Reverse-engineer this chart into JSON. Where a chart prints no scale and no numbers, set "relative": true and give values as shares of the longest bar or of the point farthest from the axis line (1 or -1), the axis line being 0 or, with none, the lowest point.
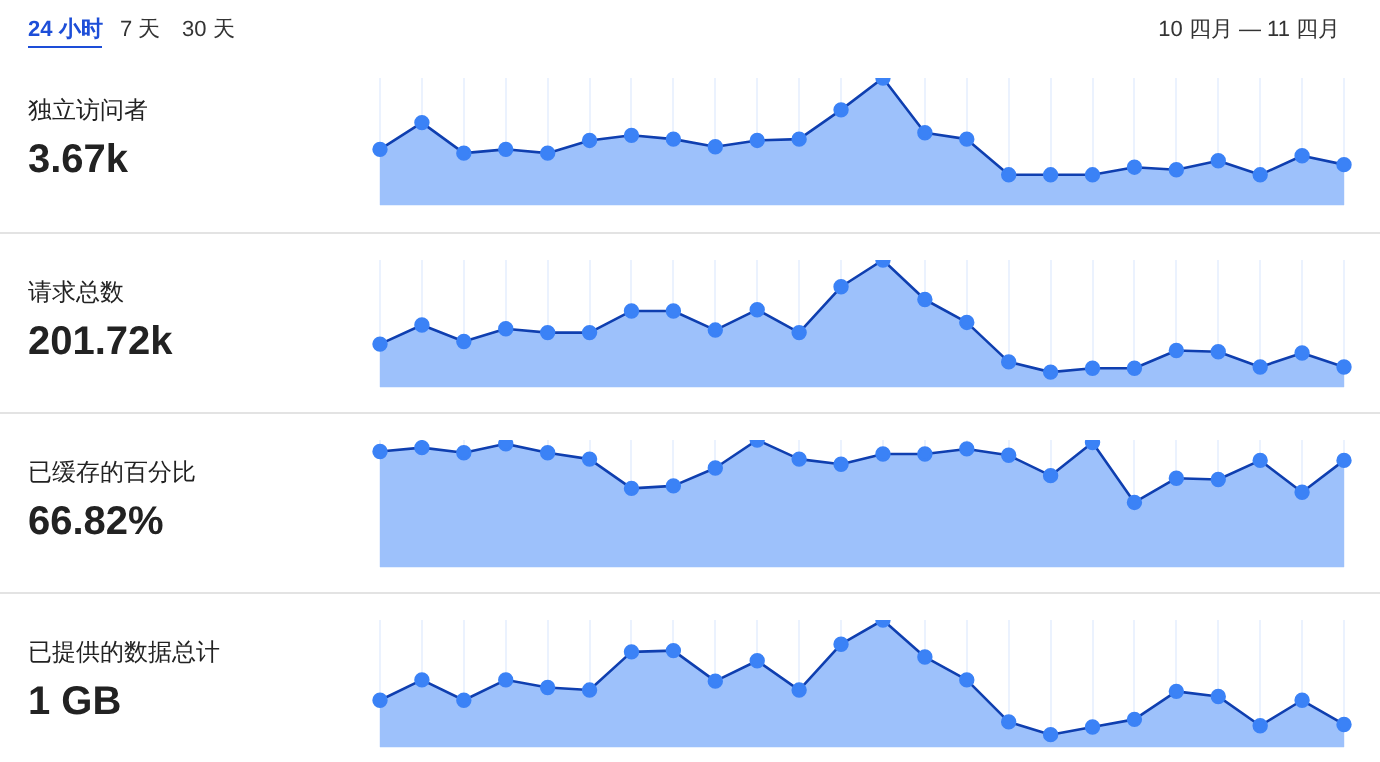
{
  "chart_data": [
    {
      "type": "area",
      "ylabel": "独立访问者",
      "subtitle": "3.67k",
      "annotations": [
        "24 小时",
        "7 天",
        "30 天",
        "10 四月 — 11 四月"
      ],
      "relative": true,
      "grid": "x",
      "legend": false,
      "marker": "circle",
      "categories": [
        null,
        null,
        null,
        null,
        null,
        null,
        null,
        null,
        null,
        null,
        null,
        null,
        null,
        null,
        null,
        null,
        null,
        null,
        null,
        null,
        null,
        null,
        null,
        null
      ],
      "series": [
        {
          "color": "#0f3fb0",
          "values": [
            0.44,
            0.65,
            0.41,
            0.44,
            0.41,
            0.51,
            0.55,
            0.52,
            0.46,
            0.51,
            0.52,
            0.75,
            1,
            0.57,
            0.52,
            0.24,
            0.24,
            0.24,
            0.3,
            0.28,
            0.35,
            0.24,
            0.39,
            0.32
          ]
        }
      ]
    },
    {
      "type": "area",
      "ylabel": "请求总数",
      "subtitle": "201.72k",
      "relative": true,
      "grid": "x",
      "legend": false,
      "marker": "circle",
      "categories": [
        null,
        null,
        null,
        null,
        null,
        null,
        null,
        null,
        null,
        null,
        null,
        null,
        null,
        null,
        null,
        null,
        null,
        null,
        null,
        null,
        null,
        null,
        null,
        null
      ],
      "series": [
        {
          "color": "#0f3fb0",
          "values": [
            0.34,
            0.49,
            0.36,
            0.46,
            0.43,
            0.43,
            0.6,
            0.6,
            0.45,
            0.61,
            0.43,
            0.79,
            1,
            0.69,
            0.51,
            0.2,
            0.12,
            0.15,
            0.15,
            0.29,
            0.28,
            0.16,
            0.27,
            0.16
          ]
        }
      ]
    },
    {
      "type": "area",
      "ylabel": "已缓存的百分比",
      "subtitle": "66.82%",
      "relative": true,
      "grid": "x",
      "legend": false,
      "marker": "circle",
      "categories": [
        null,
        null,
        null,
        null,
        null,
        null,
        null,
        null,
        null,
        null,
        null,
        null,
        null,
        null,
        null,
        null,
        null,
        null,
        null,
        null,
        null,
        null,
        null,
        null
      ],
      "series": [
        {
          "color": "#0f3fb0",
          "values": [
            0.91,
            0.94,
            0.9,
            0.97,
            0.9,
            0.85,
            0.62,
            0.64,
            0.78,
            1,
            0.85,
            0.81,
            0.89,
            0.89,
            0.93,
            0.88,
            0.72,
            0.98,
            0.51,
            0.7,
            0.69,
            0.84,
            0.59,
            0.84
          ]
        }
      ]
    },
    {
      "type": "area",
      "ylabel": "已提供的数据总计",
      "subtitle": "1 GB",
      "relative": true,
      "grid": "x",
      "legend": false,
      "marker": "circle",
      "categories": [
        null,
        null,
        null,
        null,
        null,
        null,
        null,
        null,
        null,
        null,
        null,
        null,
        null,
        null,
        null,
        null,
        null,
        null,
        null,
        null,
        null,
        null,
        null,
        null
      ],
      "series": [
        {
          "color": "#0f3fb0",
          "values": [
            0.37,
            0.53,
            0.37,
            0.53,
            0.47,
            0.45,
            0.75,
            0.76,
            0.52,
            0.68,
            0.45,
            0.81,
            1,
            0.71,
            0.53,
            0.2,
            0.1,
            0.16,
            0.22,
            0.44,
            0.4,
            0.17,
            0.37,
            0.18
          ]
        }
      ]
    }
  ]
}
